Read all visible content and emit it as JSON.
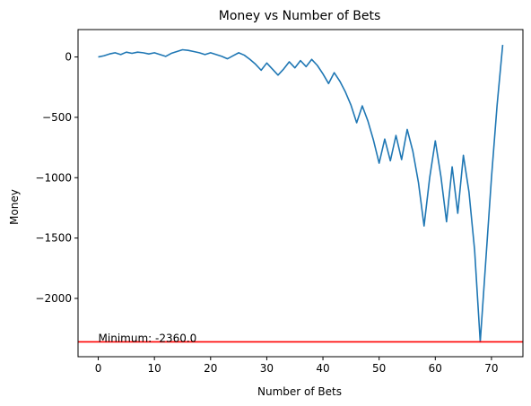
{
  "chart_data": {
    "type": "line",
    "title": "Money vs Number of Bets",
    "xlabel": "Number of Bets",
    "ylabel": "Money",
    "xlim": [
      -3.6,
      75.6
    ],
    "ylim": [
      -2483,
      227
    ],
    "xticks": [
      0,
      10,
      20,
      30,
      40,
      50,
      60,
      70
    ],
    "yticks": [
      0,
      -500,
      -1000,
      -1500,
      -2000
    ],
    "ytick_labels": [
      "0",
      "−500",
      "−1000",
      "−1500",
      "−2000"
    ],
    "grid": false,
    "line_color": "#1f77b4",
    "reference_line": {
      "y": -2360,
      "color": "#ff0000"
    },
    "annotation": {
      "text": "Minimum: -2360.0",
      "x": 0,
      "y": -2360
    },
    "series": [
      {
        "x": [
          0,
          1,
          2,
          3,
          4,
          5,
          6,
          7,
          8,
          9,
          10,
          11,
          12,
          13,
          14,
          15,
          16,
          17,
          18,
          19,
          20,
          21,
          22,
          23,
          24,
          25,
          26,
          27,
          28,
          29,
          30,
          31,
          32,
          33,
          34,
          35,
          36,
          37,
          38,
          39,
          40,
          41,
          42,
          43,
          44,
          45,
          46,
          47,
          48,
          49,
          50,
          51,
          52,
          53,
          54,
          55,
          56,
          57,
          58,
          59,
          60,
          61,
          62,
          63,
          64,
          65,
          66,
          67,
          68,
          69,
          70,
          71,
          72
        ],
        "y": [
          0,
          10,
          25,
          35,
          20,
          40,
          30,
          40,
          35,
          25,
          35,
          20,
          5,
          30,
          45,
          60,
          55,
          45,
          35,
          20,
          35,
          20,
          5,
          -15,
          10,
          35,
          15,
          -20,
          -60,
          -110,
          -50,
          -100,
          -150,
          -100,
          -40,
          -90,
          -30,
          -80,
          -20,
          -70,
          -140,
          -220,
          -130,
          -200,
          -290,
          -400,
          -545,
          -405,
          -530,
          -690,
          -880,
          -680,
          -860,
          -650,
          -850,
          -600,
          -780,
          -1040,
          -1400,
          -1000,
          -695,
          -990,
          -1365,
          -910,
          -1295,
          -815,
          -1120,
          -1600,
          -2360,
          -1680,
          -1000,
          -400,
          100
        ]
      }
    ]
  }
}
